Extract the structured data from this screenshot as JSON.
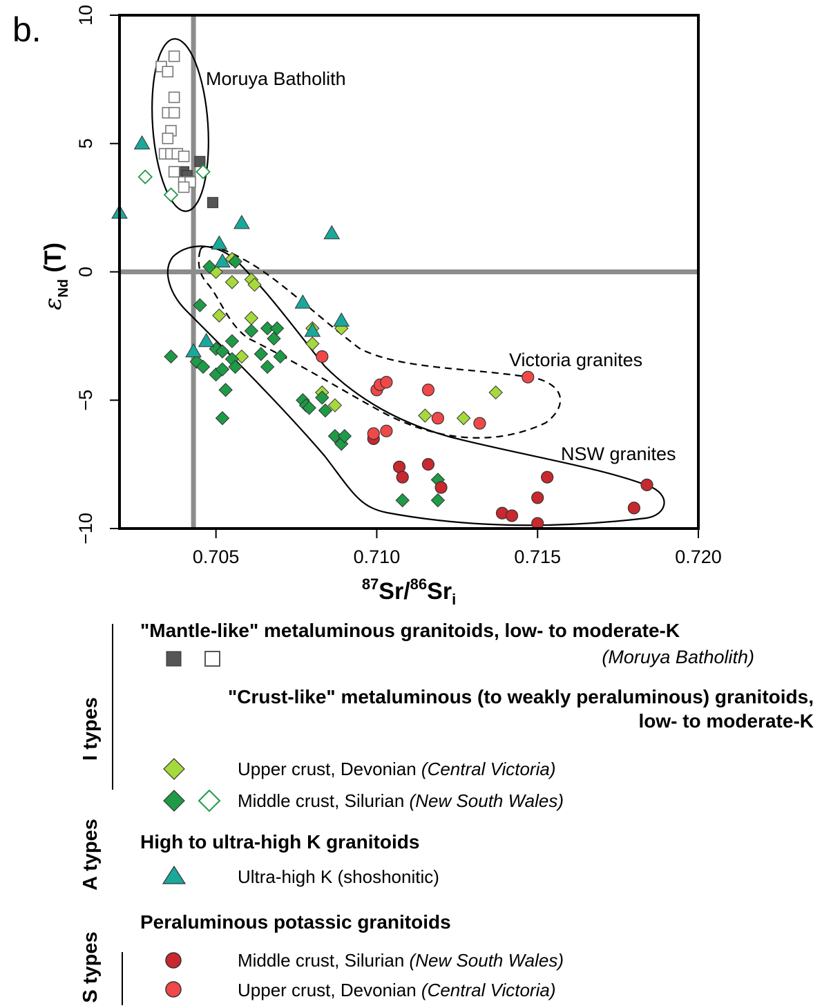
{
  "panel_label": "b.",
  "chart_data": {
    "type": "scatter",
    "xlim": [
      0.702,
      0.72
    ],
    "ylim": [
      -10,
      10
    ],
    "x_ticks": [
      "0.705",
      "0.710",
      "0.715",
      "0.720"
    ],
    "y_ticks": [
      "10",
      "5",
      "0",
      "−5",
      "−10"
    ],
    "xlabel": {
      "sup1": "87",
      "main1": "Sr/",
      "sup2": "86",
      "main2": "Sr",
      "sub": "i"
    },
    "ylabel": {
      "symbol": "ε",
      "sub": "Nd",
      "rest": " (T)"
    },
    "reference_lines": {
      "x": 0.7043,
      "y": 0
    },
    "field_labels": {
      "moruya": "Moruya Batholith",
      "victoria": "Victoria granites",
      "nsw": "NSW granites"
    },
    "series": [
      {
        "name": "Mantle-like, filled",
        "marker": "square",
        "fill": "#555555",
        "stroke": "#333333",
        "points": [
          [
            0.704,
            3.9
          ],
          [
            0.7041,
            3.75
          ],
          [
            0.7045,
            4.3
          ],
          [
            0.7049,
            2.7
          ]
        ]
      },
      {
        "name": "Mantle-like, open",
        "marker": "square",
        "fill": "#ffffff",
        "stroke": "#777777",
        "points": [
          [
            0.7037,
            8.4
          ],
          [
            0.7033,
            8.0
          ],
          [
            0.7035,
            7.8
          ],
          [
            0.7037,
            6.8
          ],
          [
            0.7035,
            6.2
          ],
          [
            0.7037,
            6.2
          ],
          [
            0.7036,
            5.5
          ],
          [
            0.7035,
            5.2
          ],
          [
            0.7034,
            4.6
          ],
          [
            0.7036,
            4.6
          ],
          [
            0.7038,
            4.6
          ],
          [
            0.704,
            4.5
          ],
          [
            0.7037,
            3.9
          ],
          [
            0.704,
            3.5
          ],
          [
            0.7042,
            3.5
          ],
          [
            0.704,
            3.3
          ]
        ]
      },
      {
        "name": "Upper crust, Devonian (Central Victoria)",
        "marker": "diamond",
        "fill": "#a6d93c",
        "stroke": "#333333",
        "points": [
          [
            0.7055,
            0.5
          ],
          [
            0.705,
            0.0
          ],
          [
            0.7061,
            -0.3
          ],
          [
            0.7055,
            -0.4
          ],
          [
            0.7062,
            -0.5
          ],
          [
            0.7051,
            -1.7
          ],
          [
            0.7061,
            -1.8
          ],
          [
            0.7058,
            -3.3
          ],
          [
            0.708,
            -2.2
          ],
          [
            0.7089,
            -2.2
          ],
          [
            0.708,
            -2.8
          ],
          [
            0.7083,
            -4.7
          ],
          [
            0.7087,
            -5.2
          ],
          [
            0.7115,
            -5.6
          ],
          [
            0.7127,
            -5.7
          ],
          [
            0.7137,
            -4.7
          ]
        ]
      },
      {
        "name": "Middle crust, Silurian (New South Wales)",
        "marker": "diamond",
        "fill": "#1f9a47",
        "stroke": "#333333",
        "points": [
          [
            0.7048,
            0.2
          ],
          [
            0.7056,
            0.4
          ],
          [
            0.7045,
            -1.3
          ],
          [
            0.7036,
            -3.3
          ],
          [
            0.7044,
            -3.5
          ],
          [
            0.7046,
            -3.7
          ],
          [
            0.705,
            -3.0
          ],
          [
            0.7052,
            -3.1
          ],
          [
            0.705,
            -4.0
          ],
          [
            0.7052,
            -3.8
          ],
          [
            0.7055,
            -2.7
          ],
          [
            0.7055,
            -3.4
          ],
          [
            0.7056,
            -3.7
          ],
          [
            0.7061,
            -2.3
          ],
          [
            0.7064,
            -3.2
          ],
          [
            0.7066,
            -2.2
          ],
          [
            0.7066,
            -3.7
          ],
          [
            0.7068,
            -2.6
          ],
          [
            0.7069,
            -2.2
          ],
          [
            0.707,
            -3.3
          ],
          [
            0.7052,
            -5.7
          ],
          [
            0.7053,
            -4.6
          ],
          [
            0.7077,
            -5.0
          ],
          [
            0.7078,
            -5.2
          ],
          [
            0.7079,
            -5.3
          ],
          [
            0.7083,
            -4.9
          ],
          [
            0.7084,
            -5.4
          ],
          [
            0.7087,
            -6.4
          ],
          [
            0.7089,
            -6.7
          ],
          [
            0.709,
            -6.4
          ],
          [
            0.7108,
            -8.9
          ],
          [
            0.7119,
            -8.1
          ],
          [
            0.7119,
            -8.9
          ]
        ]
      },
      {
        "name": "Middle crust, Silurian (New South Wales), open",
        "marker": "diamond",
        "fill": "#ffffff",
        "stroke": "#1f9a47",
        "points": [
          [
            0.7028,
            3.7
          ],
          [
            0.7036,
            3.0
          ],
          [
            0.7046,
            3.9
          ]
        ]
      },
      {
        "name": "Ultra-high K (shoshonitic)",
        "marker": "triangle",
        "fill": "#1aa89a",
        "stroke": "#333333",
        "points": [
          [
            0.7027,
            5.0
          ],
          [
            0.702,
            2.3
          ],
          [
            0.7058,
            1.9
          ],
          [
            0.7086,
            1.5
          ],
          [
            0.7051,
            1.1
          ],
          [
            0.7052,
            0.4
          ],
          [
            0.7077,
            -1.2
          ],
          [
            0.7089,
            -1.9
          ],
          [
            0.708,
            -2.3
          ],
          [
            0.7047,
            -2.7
          ],
          [
            0.7043,
            -3.1
          ]
        ]
      },
      {
        "name": "Middle crust, Silurian (New South Wales)",
        "marker": "circle",
        "fill": "#c8282e",
        "stroke": "#333333",
        "points": [
          [
            0.7099,
            -6.5
          ],
          [
            0.7107,
            -7.6
          ],
          [
            0.7108,
            -8.0
          ],
          [
            0.7116,
            -7.5
          ],
          [
            0.712,
            -8.4
          ],
          [
            0.7139,
            -9.4
          ],
          [
            0.7142,
            -9.5
          ],
          [
            0.715,
            -8.8
          ],
          [
            0.715,
            -9.8
          ],
          [
            0.7153,
            -8.0
          ],
          [
            0.718,
            -9.2
          ],
          [
            0.7184,
            -8.3
          ]
        ]
      },
      {
        "name": "Upper crust, Devonian (Central Victoria)",
        "marker": "circle",
        "fill": "#f04848",
        "stroke": "#333333",
        "points": [
          [
            0.7083,
            -3.3
          ],
          [
            0.71,
            -4.6
          ],
          [
            0.7101,
            -4.4
          ],
          [
            0.7103,
            -4.3
          ],
          [
            0.7116,
            -4.6
          ],
          [
            0.7147,
            -4.1
          ],
          [
            0.7099,
            -6.3
          ],
          [
            0.7103,
            -6.2
          ],
          [
            0.7119,
            -5.7
          ],
          [
            0.7132,
            -5.9
          ]
        ]
      }
    ]
  },
  "legend": {
    "i_types": {
      "group_label": "I types",
      "mantle_heading": "\"Mantle-like\" metaluminous granitoids, low- to moderate-K",
      "mantle_note": "(Moruya Batholith)",
      "crust_heading_1": "\"Crust-like\" metaluminous (to weakly peraluminous) granitoids,",
      "crust_heading_2": "low- to moderate-K",
      "upper_text": "Upper crust, Devonian ",
      "upper_note": "(Central Victoria)",
      "middle_text": "Middle crust, Silurian ",
      "middle_note": "(New South Wales)"
    },
    "a_types": {
      "group_label": "A types",
      "heading": "High to ultra-high K granitoids",
      "item_text": "Ultra-high K (shoshonitic)"
    },
    "s_types": {
      "group_label": "S types",
      "heading": "Peraluminous potassic granitoids",
      "middle_text": "Middle crust, Silurian ",
      "middle_note": "(New South Wales)",
      "upper_text": "Upper crust, Devonian ",
      "upper_note": "(Central Victoria)"
    }
  },
  "colors": {
    "ref_line": "#8c8c8c",
    "mantle_filled": "#555555",
    "mantle_open_stroke": "#777777",
    "upper_diamond": "#a6d93c",
    "middle_diamond": "#1f9a47",
    "triangle": "#1aa89a",
    "s_middle": "#c8282e",
    "s_upper": "#f04848"
  }
}
